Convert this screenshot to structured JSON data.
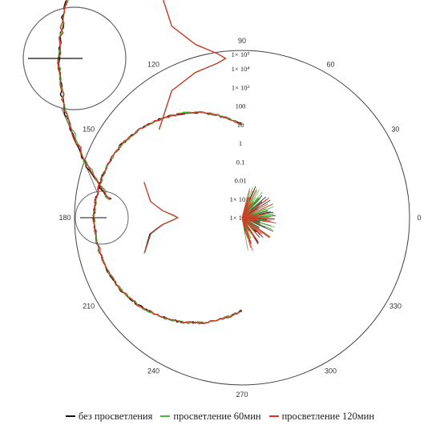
{
  "chart_data": {
    "type": "polar-line",
    "title": "",
    "angle_unit": "degrees",
    "angle_ticks": [
      "0",
      "30",
      "60",
      "90",
      "120",
      "150",
      "180",
      "210",
      "240",
      "270",
      "300",
      "330"
    ],
    "radial_scale": "log",
    "radial_ticks": [
      "1× 10⁻⁴",
      "1× 10⁻³",
      "0.01",
      "0.1",
      "1",
      "10",
      "100",
      "1× 10³",
      "1× 10⁴",
      "1× 10⁵"
    ],
    "radial_range": [
      0.0001,
      100000
    ],
    "grid": false,
    "legend_position": "bottom",
    "inset": {
      "description": "magnified view of the 180° region",
      "position": "top-left"
    },
    "series": [
      {
        "name": "без просветления",
        "color": "#111111",
        "lobe": [
          [
            160,
            40
          ],
          [
            170,
            10
          ],
          [
            175,
            2
          ],
          [
            178,
            0.5
          ],
          [
            180,
            0.3
          ],
          [
            182,
            0.5
          ],
          [
            185,
            2
          ],
          [
            190,
            10
          ],
          [
            200,
            40
          ]
        ],
        "points": [
          [
            90,
            10
          ],
          [
            100,
            30
          ],
          [
            110,
            100
          ],
          [
            120,
            300
          ],
          [
            130,
            800
          ],
          [
            140,
            2000
          ],
          [
            150,
            4000
          ],
          [
            160,
            6000
          ],
          [
            170,
            8000
          ],
          [
            180,
            9000
          ],
          [
            190,
            8000
          ],
          [
            200,
            6000
          ],
          [
            210,
            4000
          ],
          [
            220,
            2000
          ],
          [
            230,
            800
          ],
          [
            240,
            300
          ],
          [
            250,
            100
          ],
          [
            260,
            30
          ],
          [
            270,
            10
          ]
        ]
      },
      {
        "name": "просветление 60мин",
        "color": "#49b83a",
        "lobe": [
          [
            160,
            40
          ],
          [
            170,
            10
          ],
          [
            175,
            2
          ],
          [
            178,
            0.5
          ],
          [
            180,
            0.3
          ],
          [
            182,
            0.5
          ],
          [
            185,
            2
          ],
          [
            190,
            10
          ],
          [
            200,
            40
          ]
        ],
        "points": [
          [
            90,
            10
          ],
          [
            100,
            30
          ],
          [
            110,
            100
          ],
          [
            120,
            300
          ],
          [
            130,
            800
          ],
          [
            140,
            2000
          ],
          [
            150,
            4000
          ],
          [
            160,
            6000
          ],
          [
            170,
            8000
          ],
          [
            180,
            9000
          ],
          [
            190,
            8000
          ],
          [
            200,
            6000
          ],
          [
            210,
            4000
          ],
          [
            220,
            2000
          ],
          [
            230,
            800
          ],
          [
            240,
            300
          ],
          [
            250,
            100
          ],
          [
            260,
            30
          ],
          [
            270,
            10
          ]
        ]
      },
      {
        "name": "просветление 120мин",
        "color": "#e03026",
        "lobe": [
          [
            160,
            40
          ],
          [
            170,
            10
          ],
          [
            175,
            2
          ],
          [
            178,
            0.5
          ],
          [
            180,
            0.3
          ],
          [
            182,
            0.5
          ],
          [
            185,
            2
          ],
          [
            190,
            10
          ],
          [
            200,
            40
          ]
        ],
        "points": [
          [
            90,
            10
          ],
          [
            100,
            30
          ],
          [
            110,
            100
          ],
          [
            120,
            300
          ],
          [
            130,
            800
          ],
          [
            140,
            2000
          ],
          [
            150,
            4000
          ],
          [
            160,
            6000
          ],
          [
            170,
            8000
          ],
          [
            180,
            9000
          ],
          [
            190,
            8000
          ],
          [
            200,
            6000
          ],
          [
            210,
            4000
          ],
          [
            220,
            2000
          ],
          [
            230,
            800
          ],
          [
            240,
            300
          ],
          [
            250,
            100
          ],
          [
            260,
            30
          ],
          [
            270,
            10
          ]
        ]
      }
    ]
  }
}
